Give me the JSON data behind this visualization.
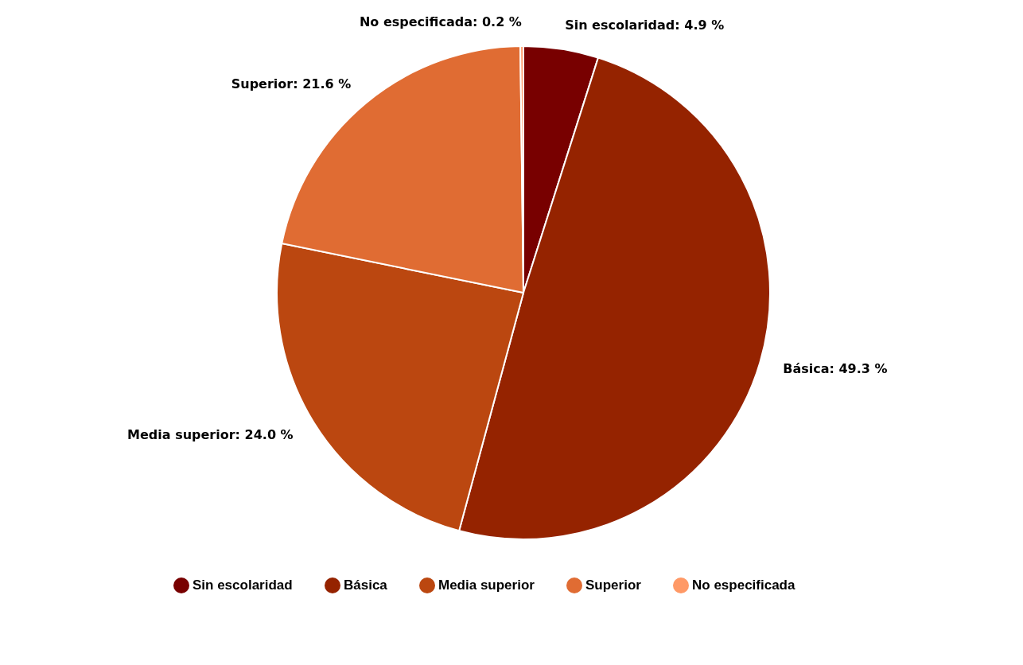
{
  "chart_data": {
    "type": "pie",
    "categories": [
      "Sin escolaridad",
      "Básica",
      "Media superior",
      "Superior",
      "No especificada"
    ],
    "values": [
      4.9,
      49.3,
      24.0,
      21.6,
      0.2
    ],
    "colors": [
      "#780000",
      "#952300",
      "#bb4710",
      "#e06c33",
      "#ff9966"
    ],
    "value_labels": [
      ": 4.9 %",
      ": 49.3 %",
      ": 24.0 %",
      ": 21.6 %",
      ": 0.2 %"
    ],
    "legend": "bottom"
  }
}
